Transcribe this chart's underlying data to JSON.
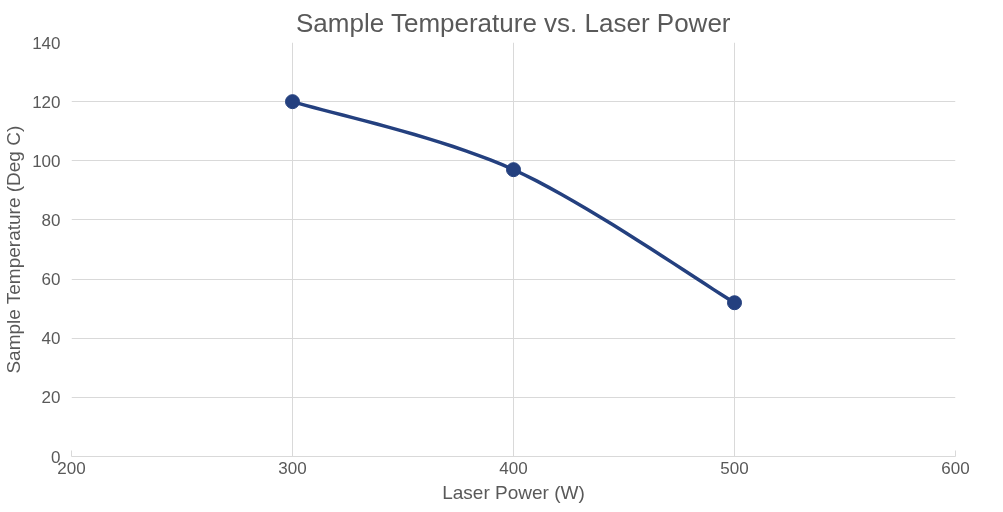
{
  "chart_data": {
    "type": "line",
    "title": "Sample Temperature vs. Laser Power",
    "xlabel": "Laser Power (W)",
    "ylabel": "Sample Temperature (Deg C)",
    "x": [
      300,
      400,
      500
    ],
    "series": [
      {
        "color": "#24407f",
        "values": [
          120,
          97,
          52
        ]
      }
    ],
    "xlim": [
      200,
      600
    ],
    "xticks": [
      200,
      300,
      400,
      500,
      600
    ],
    "ylim": [
      0,
      140
    ],
    "yticks": [
      0,
      20,
      40,
      60,
      80,
      100,
      120,
      140
    ],
    "grid": true,
    "marker": "circle",
    "line_style": "solid"
  }
}
